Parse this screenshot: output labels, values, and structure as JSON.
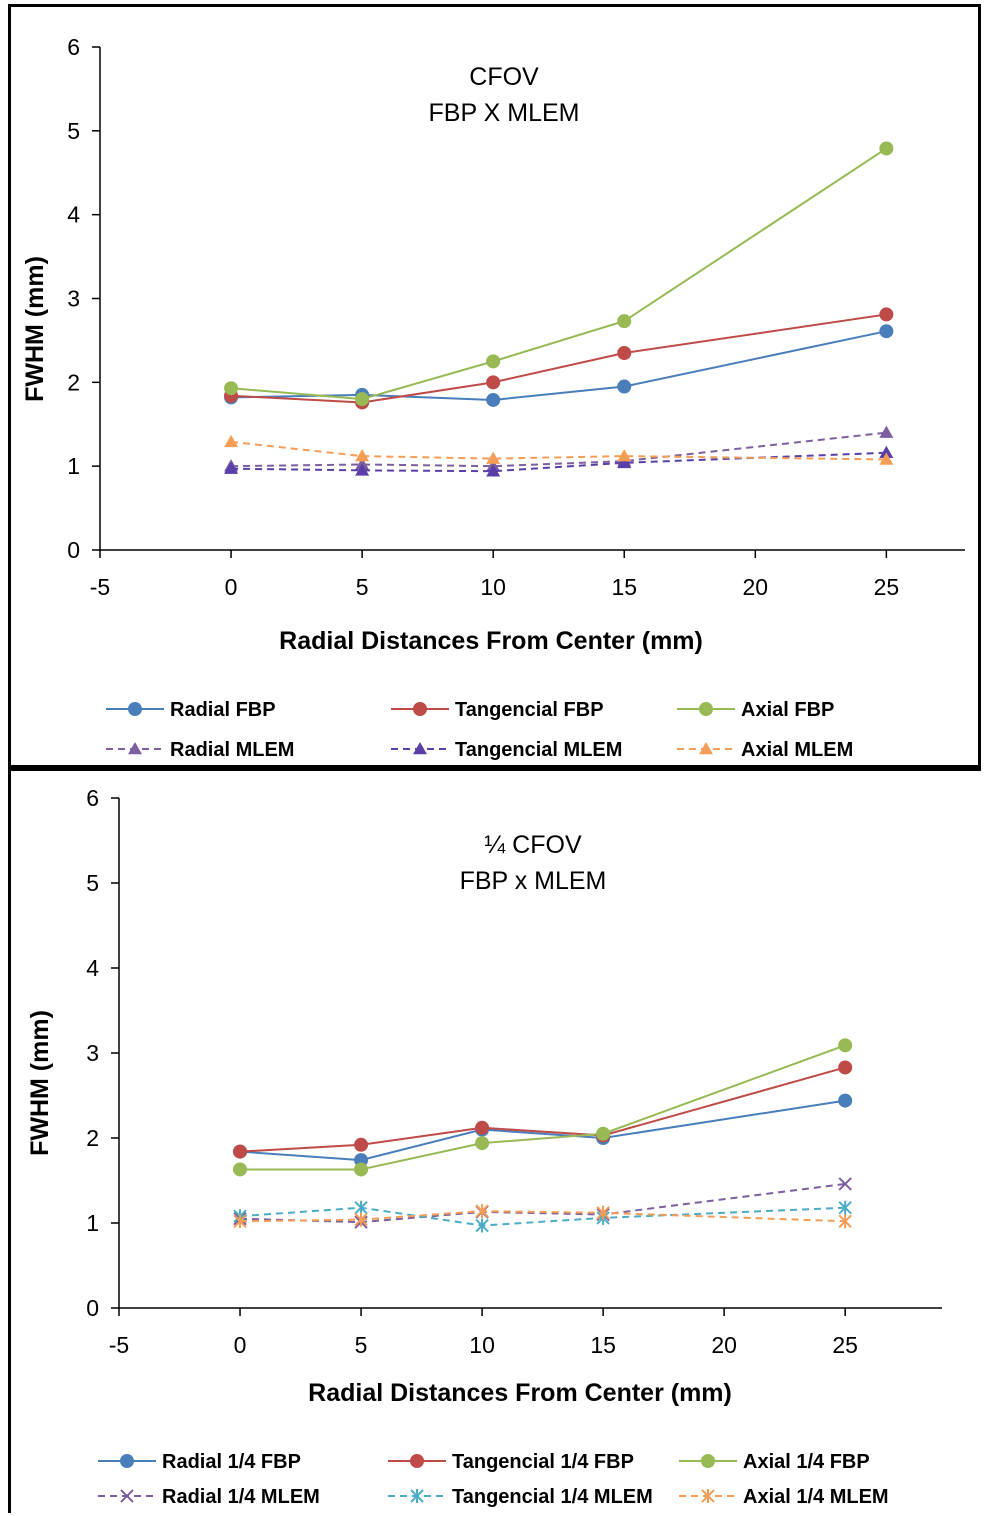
{
  "chart_data": [
    {
      "type": "line",
      "title": [
        "CFOV",
        "FBP X MLEM"
      ],
      "xlabel": "Radial Distances From Center (mm)",
      "ylabel": "FWHM (mm)",
      "xlim": [
        -5,
        28
      ],
      "ylim": [
        0,
        6
      ],
      "xticks": [
        -5,
        0,
        5,
        10,
        15,
        20,
        25
      ],
      "yticks": [
        0,
        1,
        2,
        3,
        4,
        5,
        6
      ],
      "grid": false,
      "legend_position": "bottom",
      "x": [
        0,
        5,
        10,
        15,
        25
      ],
      "series": [
        {
          "name": "Radial FBP",
          "values": [
            1.82,
            1.85,
            1.79,
            1.95,
            2.61
          ],
          "color": "#4a7ebb",
          "dash": "solid",
          "marker": "circle"
        },
        {
          "name": "Tangencial FBP",
          "values": [
            1.84,
            1.76,
            2.0,
            2.35,
            2.81
          ],
          "color": "#be4b48",
          "dash": "solid",
          "marker": "circle"
        },
        {
          "name": "Axial FBP",
          "values": [
            1.93,
            1.8,
            2.25,
            2.73,
            4.79
          ],
          "color": "#98b954",
          "dash": "solid",
          "marker": "circle"
        },
        {
          "name": "Radial MLEM",
          "values": [
            1.0,
            1.02,
            1.0,
            1.06,
            1.4
          ],
          "color": "#7d5fa0",
          "dash": "dashed",
          "marker": "triangle"
        },
        {
          "name": "Tangencial MLEM",
          "values": [
            0.97,
            0.95,
            0.94,
            1.04,
            1.16
          ],
          "color": "#5b3fa8",
          "dash": "dashed",
          "marker": "triangle"
        },
        {
          "name": "Axial MLEM",
          "values": [
            1.29,
            1.12,
            1.09,
            1.12,
            1.08
          ],
          "color": "#f59d56",
          "dash": "dashed",
          "marker": "triangle"
        }
      ]
    },
    {
      "type": "line",
      "title": [
        "¼ CFOV",
        "FBP x MLEM"
      ],
      "xlabel": "Radial Distances From Center (mm)",
      "ylabel": "FWHM (mm)",
      "xlim": [
        -5,
        29
      ],
      "ylim": [
        0,
        6
      ],
      "xticks": [
        -5,
        0,
        5,
        10,
        15,
        20,
        25
      ],
      "yticks": [
        0,
        1,
        2,
        3,
        4,
        5,
        6
      ],
      "grid": false,
      "legend_position": "bottom",
      "x": [
        0,
        5,
        10,
        15,
        25
      ],
      "series": [
        {
          "name": "Radial 1/4 FBP",
          "values": [
            1.84,
            1.74,
            2.1,
            2.0,
            2.44
          ],
          "color": "#4a7ebb",
          "dash": "solid",
          "marker": "circle"
        },
        {
          "name": "Tangencial 1/4 FBP",
          "values": [
            1.84,
            1.92,
            2.12,
            2.03,
            2.83
          ],
          "color": "#be4b48",
          "dash": "solid",
          "marker": "circle"
        },
        {
          "name": "Axial 1/4 FBP",
          "values": [
            1.63,
            1.63,
            1.94,
            2.05,
            3.09
          ],
          "color": "#98b954",
          "dash": "solid",
          "marker": "circle"
        },
        {
          "name": "Radial 1/4 MLEM",
          "values": [
            1.05,
            1.01,
            1.13,
            1.1,
            1.46
          ],
          "color": "#7d5fa0",
          "dash": "dashed",
          "marker": "x"
        },
        {
          "name": "Tangencial 1/4 MLEM",
          "values": [
            1.08,
            1.18,
            0.97,
            1.06,
            1.18
          ],
          "color": "#4bacc6",
          "dash": "dashed",
          "marker": "star"
        },
        {
          "name": "Axial 1/4 MLEM",
          "values": [
            1.02,
            1.04,
            1.14,
            1.12,
            1.02
          ],
          "color": "#f59d56",
          "dash": "dashed",
          "marker": "star"
        }
      ]
    }
  ]
}
